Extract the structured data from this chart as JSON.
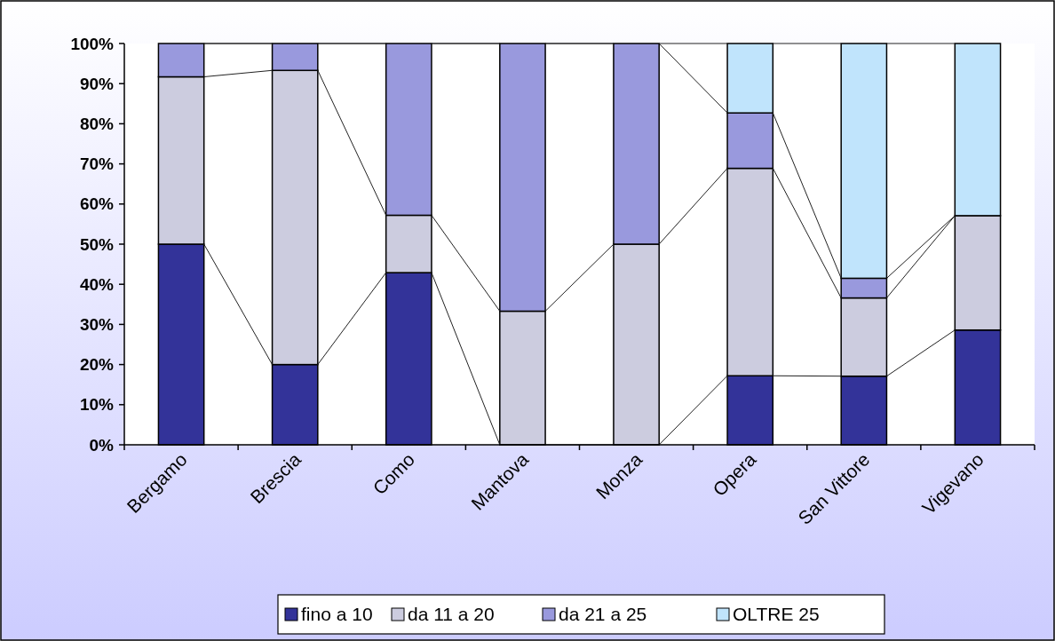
{
  "chart_data": {
    "type": "bar",
    "stacked": true,
    "categories": [
      "Bergamo",
      "Brescia",
      "Como",
      "Mantova",
      "Monza",
      "Opera",
      "San Vittore",
      "Vigevano"
    ],
    "series": [
      {
        "name": "fino a 10",
        "color": "#333399",
        "values": [
          50,
          20,
          42.9,
          0,
          0,
          17.2,
          17.1,
          28.6
        ]
      },
      {
        "name": "da 11 a 20",
        "color": "#ccccdf",
        "values": [
          41.7,
          73.3,
          14.3,
          33.3,
          50,
          51.7,
          19.5,
          28.5
        ]
      },
      {
        "name": "da 21 a 25",
        "color": "#9999dd",
        "values": [
          8.3,
          6.7,
          42.8,
          66.7,
          50,
          13.8,
          4.9,
          0
        ]
      },
      {
        "name": "OLTRE 25",
        "color": "#c0e4fc",
        "values": [
          0,
          0,
          0,
          0,
          0,
          17.3,
          58.5,
          42.9
        ]
      }
    ],
    "ylim": [
      0,
      100
    ],
    "yticks": [
      {
        "value": 0,
        "label": "0%"
      },
      {
        "value": 10,
        "label": "10%"
      },
      {
        "value": 20,
        "label": "20%"
      },
      {
        "value": 30,
        "label": "30%"
      },
      {
        "value": 40,
        "label": "40%"
      },
      {
        "value": 50,
        "label": "50%"
      },
      {
        "value": 60,
        "label": "60%"
      },
      {
        "value": 70,
        "label": "70%"
      },
      {
        "value": 80,
        "label": "80%"
      },
      {
        "value": 90,
        "label": "90%"
      },
      {
        "value": 100,
        "label": "100%"
      }
    ],
    "grid": false,
    "legend": "bottom"
  }
}
